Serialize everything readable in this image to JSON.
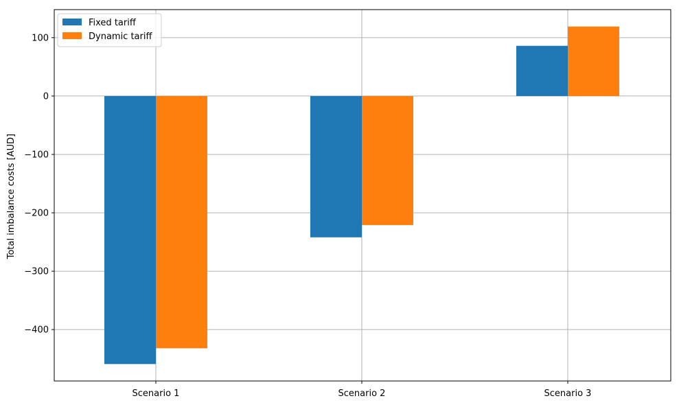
{
  "chart_data": {
    "type": "bar",
    "title": "",
    "xlabel": "",
    "ylabel": "Total imbalance costs [AUD]",
    "categories": [
      "Scenario 1",
      "Scenario 2",
      "Scenario 3"
    ],
    "series": [
      {
        "name": "Fixed tariff",
        "values": [
          -459,
          -242,
          86
        ],
        "color": "#1f77b4"
      },
      {
        "name": "Dynamic tariff",
        "values": [
          -432,
          -221,
          119
        ],
        "color": "#ff7f0e"
      }
    ],
    "ylim": [
      -488,
      148
    ],
    "yticks": [
      100,
      0,
      -100,
      -200,
      -300,
      -400
    ],
    "ytick_labels": [
      "100",
      "0",
      "−100",
      "−200",
      "−300",
      "−400"
    ],
    "grid": true,
    "legend_position": "top-left"
  }
}
